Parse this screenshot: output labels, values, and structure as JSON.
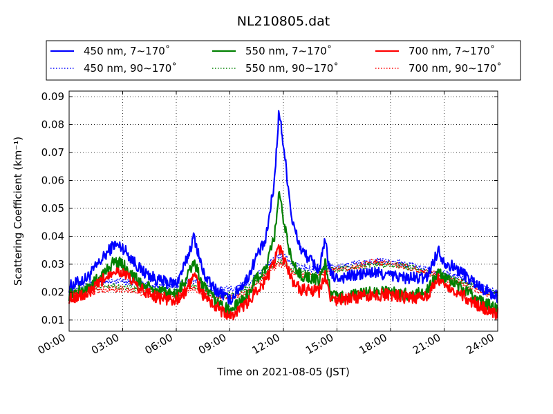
{
  "chart_data": {
    "type": "line",
    "title": "NL210805.dat",
    "xlabel": "Time on 2021-08-05 (JST)",
    "ylabel": "Scattering Coefficient (km⁻¹)",
    "xlim": [
      "00:00",
      "24:00"
    ],
    "ylim": [
      0.006,
      0.092
    ],
    "x_ticks": [
      "00:00",
      "03:00",
      "06:00",
      "09:00",
      "12:00",
      "15:00",
      "18:00",
      "21:00",
      "24:00"
    ],
    "y_ticks": [
      "0.01",
      "0.02",
      "0.03",
      "0.04",
      "0.05",
      "0.06",
      "0.07",
      "0.08",
      "0.09"
    ],
    "grid": true,
    "legend_position": "top, above plot (3 columns)",
    "x": [
      "00:00",
      "01:00",
      "02:00",
      "02:30",
      "03:00",
      "04:00",
      "05:00",
      "06:00",
      "06:30",
      "07:00",
      "07:30",
      "08:00",
      "09:00",
      "10:00",
      "10:30",
      "11:00",
      "11:30",
      "11:45",
      "12:00",
      "12:30",
      "13:00",
      "14:00",
      "14:20",
      "14:40",
      "15:00",
      "16:00",
      "17:00",
      "18:00",
      "19:00",
      "20:00",
      "20:40",
      "21:00",
      "22:00",
      "23:00",
      "24:00"
    ],
    "series": [
      {
        "name": "450 nm, 7∼170˚",
        "color": "#0000ff",
        "style": "solid",
        "values": [
          0.022,
          0.025,
          0.033,
          0.037,
          0.036,
          0.028,
          0.024,
          0.023,
          0.03,
          0.04,
          0.027,
          0.022,
          0.017,
          0.025,
          0.033,
          0.038,
          0.06,
          0.085,
          0.073,
          0.045,
          0.035,
          0.028,
          0.038,
          0.026,
          0.025,
          0.026,
          0.027,
          0.026,
          0.025,
          0.025,
          0.035,
          0.031,
          0.027,
          0.022,
          0.018
        ]
      },
      {
        "name": "450 nm, 90∼170˚",
        "color": "#0000ff",
        "style": "dotted",
        "values": [
          0.022,
          0.023,
          0.024,
          0.024,
          0.024,
          0.023,
          0.022,
          0.022,
          0.024,
          0.024,
          0.023,
          0.021,
          0.021,
          0.023,
          0.026,
          0.029,
          0.032,
          0.033,
          0.033,
          0.03,
          0.029,
          0.028,
          0.029,
          0.029,
          0.029,
          0.03,
          0.031,
          0.031,
          0.03,
          0.028,
          0.027,
          0.027,
          0.025,
          0.022,
          0.02
        ]
      },
      {
        "name": "550 nm, 7∼170˚",
        "color": "#008000",
        "style": "solid",
        "values": [
          0.019,
          0.021,
          0.027,
          0.031,
          0.03,
          0.023,
          0.02,
          0.019,
          0.024,
          0.031,
          0.022,
          0.018,
          0.013,
          0.019,
          0.025,
          0.028,
          0.04,
          0.055,
          0.046,
          0.03,
          0.026,
          0.024,
          0.031,
          0.019,
          0.018,
          0.019,
          0.02,
          0.02,
          0.019,
          0.02,
          0.027,
          0.025,
          0.021,
          0.017,
          0.014
        ]
      },
      {
        "name": "550 nm, 90∼170˚",
        "color": "#008000",
        "style": "dotted",
        "values": [
          0.02,
          0.021,
          0.022,
          0.022,
          0.022,
          0.021,
          0.02,
          0.02,
          0.022,
          0.022,
          0.021,
          0.019,
          0.019,
          0.021,
          0.024,
          0.027,
          0.03,
          0.031,
          0.031,
          0.028,
          0.027,
          0.027,
          0.028,
          0.028,
          0.028,
          0.029,
          0.03,
          0.03,
          0.029,
          0.027,
          0.026,
          0.026,
          0.024,
          0.021,
          0.019
        ]
      },
      {
        "name": "700 nm, 7∼170˚",
        "color": "#ff0000",
        "style": "solid",
        "values": [
          0.018,
          0.019,
          0.025,
          0.028,
          0.027,
          0.021,
          0.018,
          0.017,
          0.02,
          0.026,
          0.019,
          0.016,
          0.011,
          0.016,
          0.021,
          0.024,
          0.031,
          0.036,
          0.032,
          0.024,
          0.021,
          0.02,
          0.026,
          0.017,
          0.017,
          0.018,
          0.019,
          0.019,
          0.018,
          0.018,
          0.025,
          0.023,
          0.019,
          0.015,
          0.012
        ]
      },
      {
        "name": "700 nm, 90∼170˚",
        "color": "#ff0000",
        "style": "dotted",
        "values": [
          0.019,
          0.02,
          0.021,
          0.021,
          0.021,
          0.02,
          0.019,
          0.019,
          0.021,
          0.021,
          0.02,
          0.018,
          0.018,
          0.02,
          0.023,
          0.026,
          0.029,
          0.03,
          0.03,
          0.027,
          0.026,
          0.026,
          0.027,
          0.028,
          0.028,
          0.029,
          0.031,
          0.03,
          0.029,
          0.027,
          0.026,
          0.025,
          0.023,
          0.02,
          0.018
        ]
      }
    ]
  }
}
